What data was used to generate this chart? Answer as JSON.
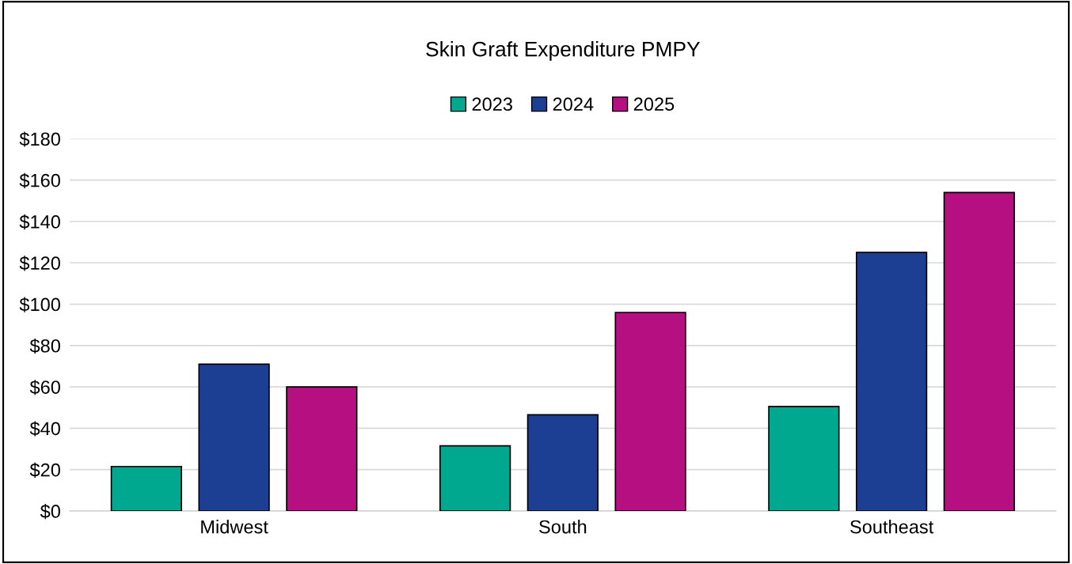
{
  "chart_data": {
    "type": "bar",
    "title": "Skin Graft Expenditure PMPY",
    "categories": [
      "Midwest",
      "South",
      "Southeast"
    ],
    "series": [
      {
        "name": "2023",
        "color": "#00a88f",
        "values": [
          21.5,
          31.5,
          50.5
        ]
      },
      {
        "name": "2024",
        "color": "#1c3f94",
        "values": [
          71,
          46.5,
          125
        ]
      },
      {
        "name": "2025",
        "color": "#b50f82",
        "values": [
          60,
          96,
          154
        ]
      }
    ],
    "ylim": [
      0,
      180
    ],
    "yticks": [
      {
        "value": 0,
        "label": "$0"
      },
      {
        "value": 20,
        "label": "$20"
      },
      {
        "value": 40,
        "label": "$40"
      },
      {
        "value": 60,
        "label": "$60"
      },
      {
        "value": 80,
        "label": "$80"
      },
      {
        "value": 100,
        "label": "$100"
      },
      {
        "value": 120,
        "label": "$120"
      },
      {
        "value": 140,
        "label": "$140"
      },
      {
        "value": 160,
        "label": "$160"
      },
      {
        "value": 180,
        "label": "$180"
      }
    ],
    "grid": "y",
    "legend": "top"
  }
}
